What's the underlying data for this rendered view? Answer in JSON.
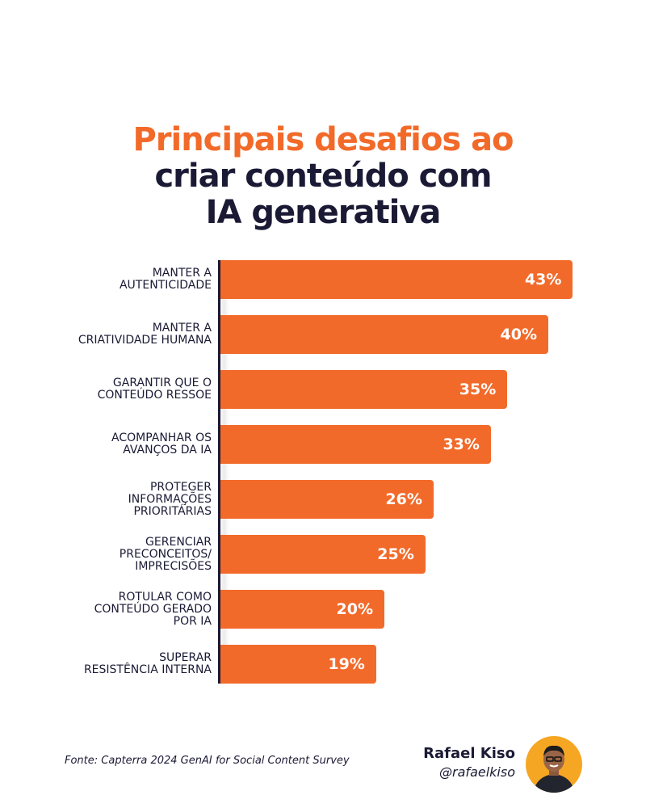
{
  "chart_data": {
    "type": "bar",
    "orientation": "horizontal",
    "title_lines": [
      "Principais desafios ao",
      "criar conteúdo com",
      "IA generativa"
    ],
    "categories": [
      "MANTER A\nAUTENTICIDADE",
      "MANTER A\nCRIATIVIDADE HUMANA",
      "GARANTIR QUE O\nCONTEÚDO RESSOE",
      "ACOMPANHAR OS\nAVANÇOS DA IA",
      "PROTEGER\nINFORMAÇÕES\nPRIORITÁRIAS",
      "GERENCIAR\nPRECONCEITOS/\nIMPRECISÕES",
      "ROTULAR COMO\nCONTEÚDO GERADO\nPOR IA",
      "SUPERAR\nRESISTÊNCIA INTERNA"
    ],
    "values": [
      43,
      40,
      35,
      33,
      26,
      25,
      20,
      19
    ],
    "value_labels": [
      "43%",
      "40%",
      "35%",
      "33%",
      "26%",
      "25%",
      "20%",
      "19%"
    ],
    "color": "#f26a2a"
  },
  "footer": {
    "source": "Fonte: Capterra 2024 GenAI for Social Content Survey",
    "author": "Rafael Kiso",
    "handle": "@rafaelkiso"
  }
}
